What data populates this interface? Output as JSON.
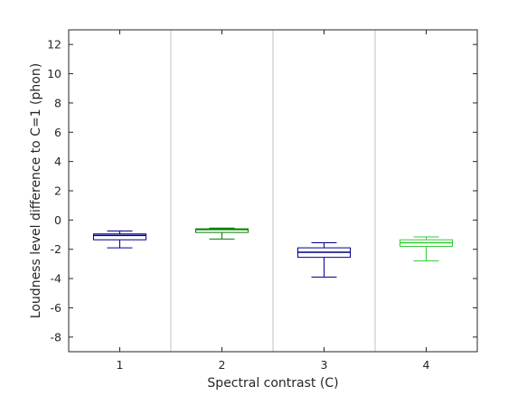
{
  "chart_data": {
    "type": "box",
    "title": "",
    "xlabel": "Spectral contrast (C)",
    "ylabel": "Loudness level difference to C=1 (phon)",
    "ylim": [
      -9,
      13
    ],
    "yticks": [
      -8,
      -6,
      -4,
      -2,
      0,
      2,
      4,
      6,
      8,
      10,
      12
    ],
    "ytick_labels": [
      "-8",
      "-6",
      "-4",
      "-2",
      "0",
      "2",
      "4",
      "6",
      "8",
      "10",
      "12"
    ],
    "categories": [
      "1",
      "2",
      "3",
      "4"
    ],
    "grid": "vertical separators between groups",
    "boxes": [
      {
        "category": "1",
        "whisker_low": -1.9,
        "q1": -1.35,
        "median": -1.05,
        "q3": -0.95,
        "whisker_high": -0.75,
        "color": "#00008b"
      },
      {
        "category": "2",
        "whisker_low": -1.3,
        "q1": -0.85,
        "median": -0.65,
        "q3": -0.6,
        "whisker_high": -0.55,
        "color": "#008000"
      },
      {
        "category": "3",
        "whisker_low": -3.9,
        "q1": -2.55,
        "median": -2.2,
        "q3": -1.9,
        "whisker_high": -1.55,
        "color": "#00008b"
      },
      {
        "category": "4",
        "whisker_low": -2.8,
        "q1": -1.8,
        "median": -1.55,
        "q3": -1.35,
        "whisker_high": -1.15,
        "color": "#33cc33"
      }
    ]
  }
}
